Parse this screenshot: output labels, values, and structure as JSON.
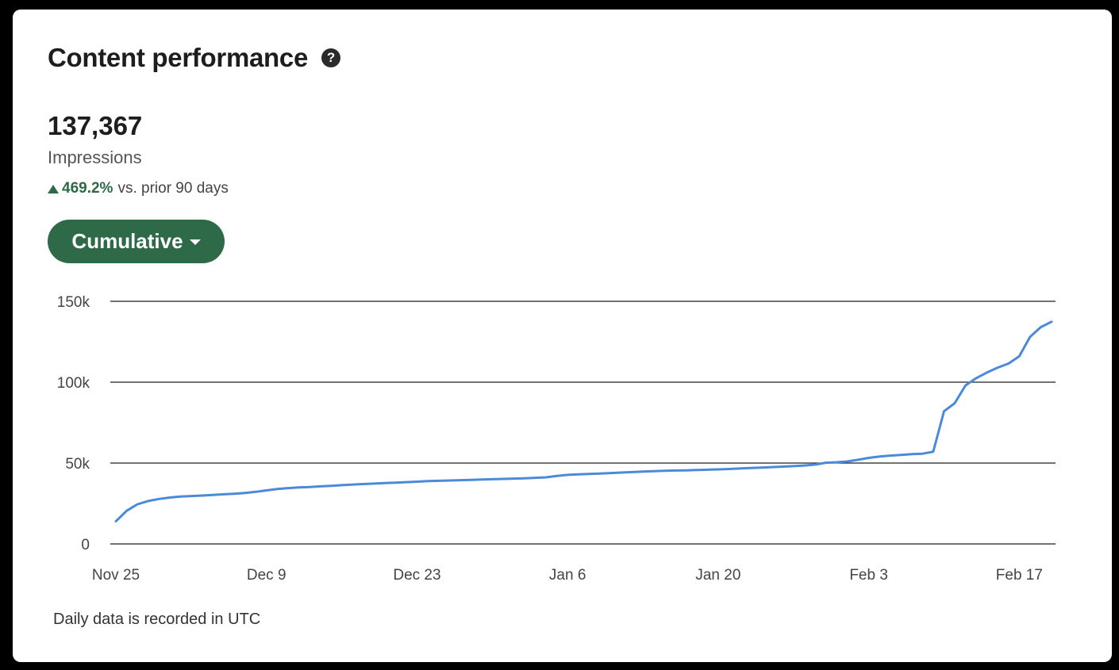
{
  "card": {
    "title": "Content performance",
    "help_icon": "question-circle-icon"
  },
  "metric": {
    "value": "137,367",
    "label": "Impressions",
    "change_pct": "469.2%",
    "change_text": "vs. prior 90 days",
    "change_direction": "up"
  },
  "view_selector": {
    "label": "Cumulative"
  },
  "colors": {
    "accent_green": "#2f6a48",
    "positive_text": "#2d6a45",
    "line": "#4a8ad9"
  },
  "footnote": "Daily data is recorded in UTC",
  "chart_data": {
    "type": "line",
    "title": "",
    "xlabel": "",
    "ylabel": "",
    "ylim": [
      0,
      150000
    ],
    "y_ticks": [
      0,
      50000,
      100000,
      150000
    ],
    "y_tick_labels": [
      "0",
      "50k",
      "100k",
      "150k"
    ],
    "x_tick_labels": [
      "Nov 25",
      "Dec 9",
      "Dec 23",
      "Jan 6",
      "Jan 20",
      "Feb 3",
      "Feb 17"
    ],
    "x_ticks": [
      "Nov 25",
      "Dec 9",
      "Dec 23",
      "Jan 6",
      "Jan 20",
      "Feb 3",
      "Feb 17"
    ],
    "x_start": "Nov 25",
    "x_end": "Feb 22",
    "grid": true,
    "series": [
      {
        "values": [
          14000,
          20500,
          24500,
          26500,
          27800,
          28700,
          29300,
          29600,
          29900,
          30300,
          30700,
          31000,
          31500,
          32200,
          33100,
          33900,
          34500,
          34900,
          35200,
          35600,
          35900,
          36300,
          36700,
          37000,
          37300,
          37600,
          37900,
          38200,
          38500,
          38800,
          39000,
          39200,
          39400,
          39600,
          39800,
          40000,
          40200,
          40400,
          40600,
          40900,
          41200,
          42000,
          42700,
          43000,
          43300,
          43500,
          43800,
          44100,
          44400,
          44700,
          45000,
          45200,
          45400,
          45500,
          45700,
          45900,
          46100,
          46300,
          46600,
          46900,
          47200,
          47500,
          47800,
          48100,
          48500,
          49000,
          50200,
          50500,
          51000,
          52000,
          53200,
          54000,
          54600,
          55000,
          55500,
          55800,
          57000,
          82000,
          87000,
          98000,
          102500,
          106000,
          109000,
          111500,
          116000,
          128000,
          134000,
          137367
        ]
      }
    ]
  }
}
